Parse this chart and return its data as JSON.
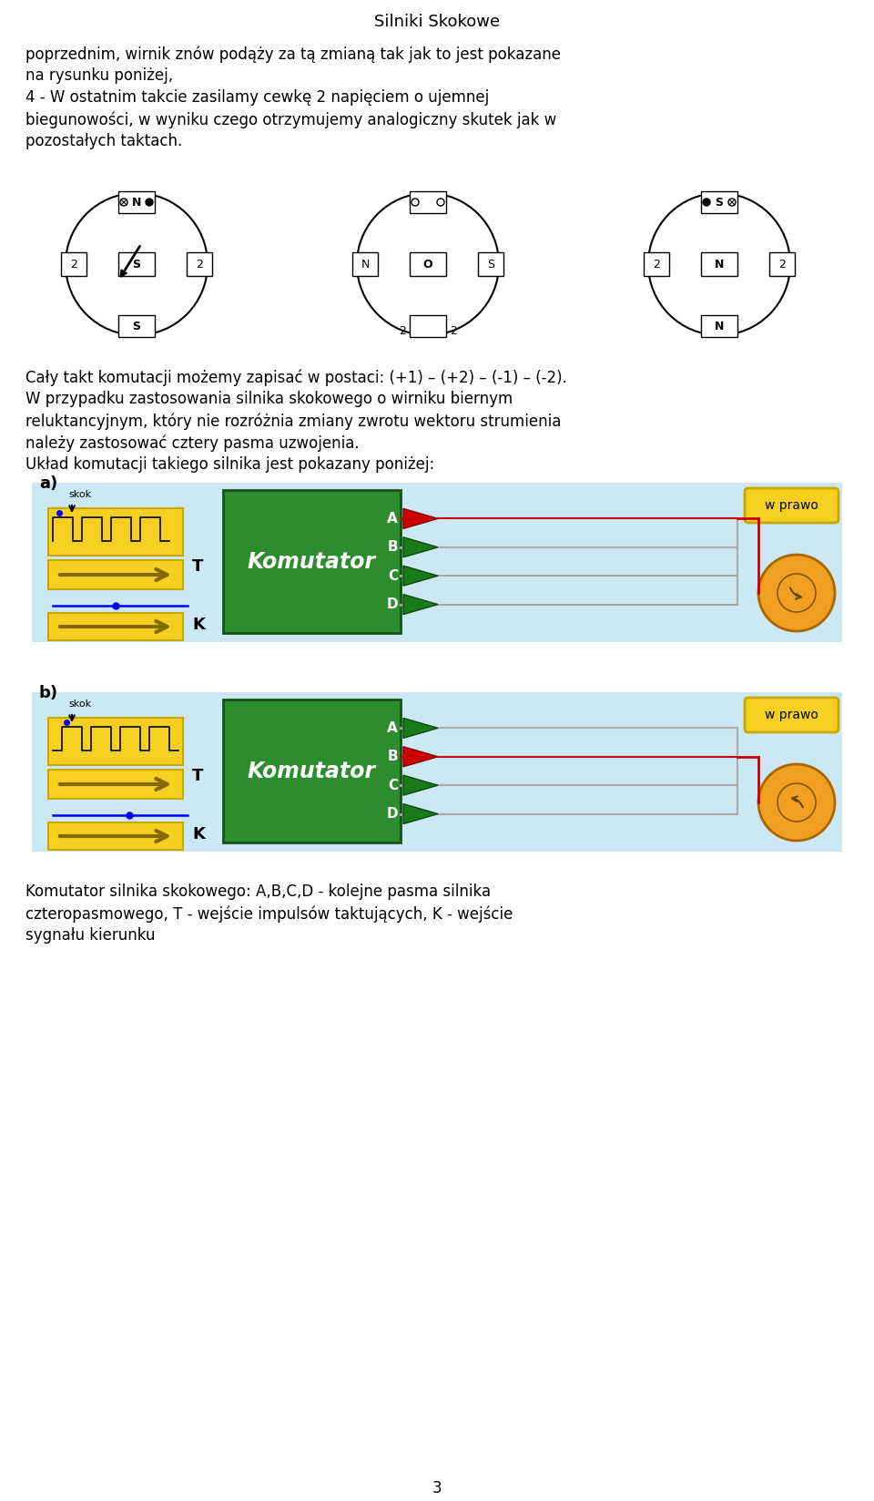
{
  "title": "Silniki Skokowe",
  "page_number": "3",
  "bg_color": "#ffffff",
  "text_color": "#000000",
  "para1_lines": [
    "poprzednim, wirnik znów podąży za tą zmianą tak jak to jest pokazane",
    "na rysunku poniżej,",
    "4 - W ostatnim takcie zasilamy cewkę 2 napięciem o ujemnej",
    "biegunowości, w wyniku czego otrzymujemy analogiczny skutek jak w",
    "pozostałych taktach."
  ],
  "para2_lines": [
    "Cały takt komutacji możemy zapisać w postaci: (+1) – (+2) – (-1) – (-2).",
    "W przypadku zastosowania silnika skokowego o wirniku biernym",
    "reluktancyjnym, który nie rozróżnia zmiany zwrotu wektoru strumienia",
    "należy zastosować cztery pasma uzwojenia.",
    "Układ komutacji takiego silnika jest pokazany poniżej:"
  ],
  "caption_lines": [
    "Komutator silnika skokowego: A,B,C,D - kolejne pasma silnika",
    "czteropasmowego, T - wejście impulsów taktujących, K - wejście",
    "sygnału kierunku"
  ],
  "ABCD_labels": [
    "A",
    "B",
    "C",
    "D"
  ],
  "komutator_label": "Komutator",
  "wprawo_label": "w prawo",
  "skok_label": "skok",
  "light_blue_bg": "#cce8f4",
  "green_box_color": "#2d8c2d",
  "yellow_box_color": "#f5d020",
  "yellow_arrow_color": "#f0c010",
  "orange_motor_color": "#f0a020",
  "red_color": "#cc0000",
  "gray_wire_color": "#aaaaaa",
  "dark_green_tri": "#1a7a1a",
  "font_size_title": 13,
  "font_size_body": 12,
  "font_size_small": 9,
  "font_size_diagram": 11
}
